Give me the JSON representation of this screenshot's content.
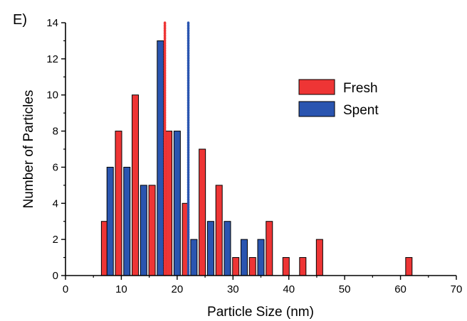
{
  "panel_label": "E)",
  "chart_data": {
    "type": "bar",
    "title": "",
    "xlabel": "Particle Size (nm)",
    "ylabel": "Number of Particles",
    "xlim": [
      0,
      70
    ],
    "ylim": [
      0,
      14
    ],
    "xticks": [
      0,
      10,
      20,
      30,
      40,
      50,
      60,
      70
    ],
    "yticks": [
      0,
      2,
      4,
      6,
      8,
      10,
      12,
      14
    ],
    "grid": false,
    "legend_position": "top-right",
    "series": [
      {
        "name": "Fresh",
        "color": "#ee3535",
        "points": [
          {
            "x": 7,
            "y": 3
          },
          {
            "x": 9.5,
            "y": 8
          },
          {
            "x": 12.5,
            "y": 10
          },
          {
            "x": 15.5,
            "y": 5
          },
          {
            "x": 18.5,
            "y": 8
          },
          {
            "x": 21.5,
            "y": 4
          },
          {
            "x": 24.5,
            "y": 7
          },
          {
            "x": 27.5,
            "y": 5
          },
          {
            "x": 30.5,
            "y": 1
          },
          {
            "x": 33.5,
            "y": 1
          },
          {
            "x": 36.5,
            "y": 3
          },
          {
            "x": 39.5,
            "y": 1
          },
          {
            "x": 42.5,
            "y": 1
          },
          {
            "x": 45.5,
            "y": 2
          },
          {
            "x": 61.5,
            "y": 1
          }
        ],
        "mean_line": 17.8
      },
      {
        "name": "Spent",
        "color": "#2a55b0",
        "points": [
          {
            "x": 8,
            "y": 6
          },
          {
            "x": 11,
            "y": 6
          },
          {
            "x": 14,
            "y": 5
          },
          {
            "x": 17,
            "y": 13
          },
          {
            "x": 20,
            "y": 8
          },
          {
            "x": 23,
            "y": 2
          },
          {
            "x": 26,
            "y": 3
          },
          {
            "x": 29,
            "y": 3
          },
          {
            "x": 32,
            "y": 2
          },
          {
            "x": 35,
            "y": 2
          }
        ],
        "mean_line": 22
      }
    ]
  }
}
